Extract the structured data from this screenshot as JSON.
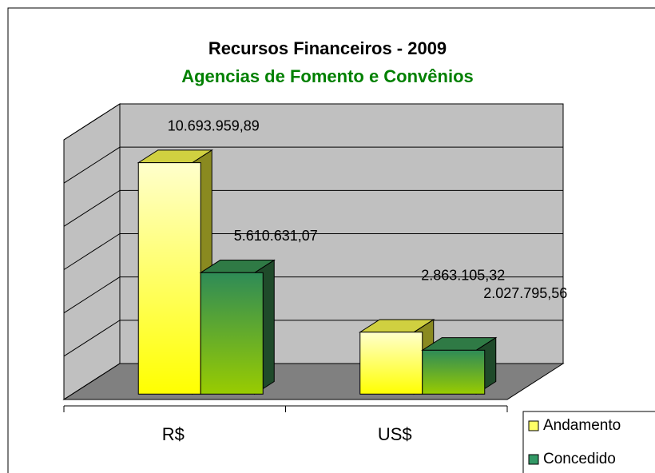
{
  "chart_data": {
    "type": "bar3d",
    "title": "Recursos Financeiros - 2009",
    "subtitle": "Agencias de Fomento e Convênios",
    "categories": [
      "R$",
      "US$"
    ],
    "series": [
      {
        "name": "Andamento",
        "color": "#ffff66",
        "values": [
          10693959.89,
          2863105.32
        ],
        "value_labels": [
          "10.693.959,89",
          "2.863.105,32"
        ]
      },
      {
        "name": "Concedido",
        "color": "#339966",
        "values": [
          5610631.07,
          2027795.56
        ],
        "value_labels": [
          "5.610.631,07",
          "2.027.795,56"
        ]
      }
    ],
    "ylim": [
      0,
      12000000
    ],
    "yticks": [
      0,
      2000000,
      4000000,
      6000000,
      8000000,
      10000000,
      12000000
    ],
    "grid": true,
    "legend": "bottom-right"
  }
}
